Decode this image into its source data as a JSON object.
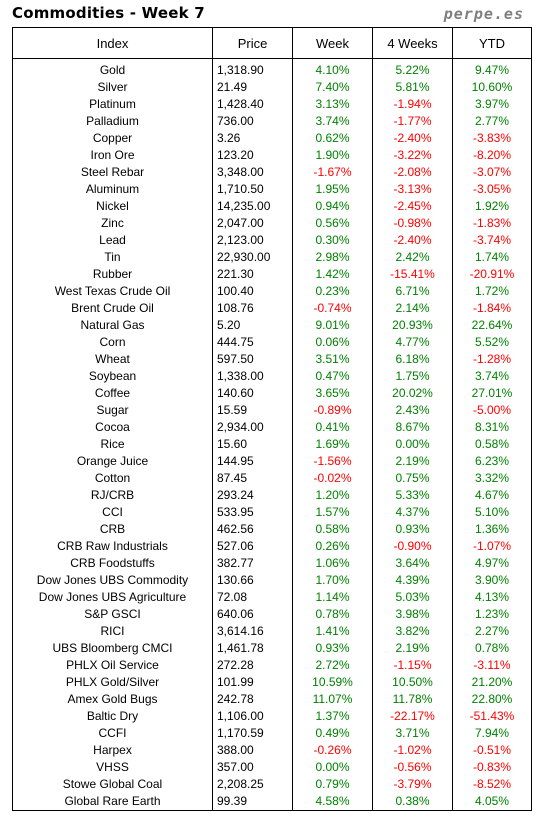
{
  "title": "Commodities - Week 7",
  "brand": "perpe.es",
  "colors": {
    "positive": "#008000",
    "negative": "#ff0000"
  },
  "columns": [
    "Index",
    "Price",
    "Week",
    "4 Weeks",
    "YTD"
  ],
  "rows": [
    {
      "index": "Gold",
      "price": "1,318.90",
      "week": "4.10%",
      "four_weeks": "5.22%",
      "ytd": "9.47%"
    },
    {
      "index": "Silver",
      "price": "21.49",
      "week": "7.40%",
      "four_weeks": "5.81%",
      "ytd": "10.60%"
    },
    {
      "index": "Platinum",
      "price": "1,428.40",
      "week": "3.13%",
      "four_weeks": "-1.94%",
      "ytd": "3.97%"
    },
    {
      "index": "Palladium",
      "price": "736.00",
      "week": "3.74%",
      "four_weeks": "-1.77%",
      "ytd": "2.77%"
    },
    {
      "index": "Copper",
      "price": "3.26",
      "week": "0.62%",
      "four_weeks": "-2.40%",
      "ytd": "-3.83%"
    },
    {
      "index": "Iron Ore",
      "price": "123.20",
      "week": "1.90%",
      "four_weeks": "-3.22%",
      "ytd": "-8.20%"
    },
    {
      "index": "Steel Rebar",
      "price": "3,348.00",
      "week": "-1.67%",
      "four_weeks": "-2.08%",
      "ytd": "-3.07%"
    },
    {
      "index": "Aluminum",
      "price": "1,710.50",
      "week": "1.95%",
      "four_weeks": "-3.13%",
      "ytd": "-3.05%"
    },
    {
      "index": "Nickel",
      "price": "14,235.00",
      "week": "0.94%",
      "four_weeks": "-2.45%",
      "ytd": "1.92%"
    },
    {
      "index": "Zinc",
      "price": "2,047.00",
      "week": "0.56%",
      "four_weeks": "-0.98%",
      "ytd": "-1.83%"
    },
    {
      "index": "Lead",
      "price": "2,123.00",
      "week": "0.30%",
      "four_weeks": "-2.40%",
      "ytd": "-3.74%"
    },
    {
      "index": "Tin",
      "price": "22,930.00",
      "week": "2.98%",
      "four_weeks": "2.42%",
      "ytd": "1.74%"
    },
    {
      "index": "Rubber",
      "price": "221.30",
      "week": "1.42%",
      "four_weeks": "-15.41%",
      "ytd": "-20.91%"
    },
    {
      "index": "West Texas Crude Oil",
      "price": "100.40",
      "week": "0.23%",
      "four_weeks": "6.71%",
      "ytd": "1.72%"
    },
    {
      "index": "Brent Crude Oil",
      "price": "108.76",
      "week": "-0.74%",
      "four_weeks": "2.14%",
      "ytd": "-1.84%"
    },
    {
      "index": "Natural Gas",
      "price": "5.20",
      "week": "9.01%",
      "four_weeks": "20.93%",
      "ytd": "22.64%"
    },
    {
      "index": "Corn",
      "price": "444.75",
      "week": "0.06%",
      "four_weeks": "4.77%",
      "ytd": "5.52%"
    },
    {
      "index": "Wheat",
      "price": "597.50",
      "week": "3.51%",
      "four_weeks": "6.18%",
      "ytd": "-1.28%"
    },
    {
      "index": "Soybean",
      "price": "1,338.00",
      "week": "0.47%",
      "four_weeks": "1.75%",
      "ytd": "3.74%"
    },
    {
      "index": "Coffee",
      "price": "140.60",
      "week": "3.65%",
      "four_weeks": "20.02%",
      "ytd": "27.01%"
    },
    {
      "index": "Sugar",
      "price": "15.59",
      "week": "-0.89%",
      "four_weeks": "2.43%",
      "ytd": "-5.00%"
    },
    {
      "index": "Cocoa",
      "price": "2,934.00",
      "week": "0.41%",
      "four_weeks": "8.67%",
      "ytd": "8.31%"
    },
    {
      "index": "Rice",
      "price": "15.60",
      "week": "1.69%",
      "four_weeks": "0.00%",
      "ytd": "0.58%"
    },
    {
      "index": "Orange Juice",
      "price": "144.95",
      "week": "-1.56%",
      "four_weeks": "2.19%",
      "ytd": "6.23%"
    },
    {
      "index": "Cotton",
      "price": "87.45",
      "week": "-0.02%",
      "four_weeks": "0.75%",
      "ytd": "3.32%"
    },
    {
      "index": "RJ/CRB",
      "price": "293.24",
      "week": "1.20%",
      "four_weeks": "5.33%",
      "ytd": "4.67%"
    },
    {
      "index": "CCI",
      "price": "533.95",
      "week": "1.57%",
      "four_weeks": "4.37%",
      "ytd": "5.10%"
    },
    {
      "index": "CRB",
      "price": "462.56",
      "week": "0.58%",
      "four_weeks": "0.93%",
      "ytd": "1.36%"
    },
    {
      "index": "CRB Raw Industrials",
      "price": "527.06",
      "week": "0.26%",
      "four_weeks": "-0.90%",
      "ytd": "-1.07%"
    },
    {
      "index": "CRB Foodstuffs",
      "price": "382.77",
      "week": "1.06%",
      "four_weeks": "3.64%",
      "ytd": "4.97%"
    },
    {
      "index": "Dow Jones UBS Commodity",
      "price": "130.66",
      "week": "1.70%",
      "four_weeks": "4.39%",
      "ytd": "3.90%"
    },
    {
      "index": "Dow Jones UBS Agriculture",
      "price": "72.08",
      "week": "1.14%",
      "four_weeks": "5.03%",
      "ytd": "4.13%"
    },
    {
      "index": "S&P GSCI",
      "price": "640.06",
      "week": "0.78%",
      "four_weeks": "3.98%",
      "ytd": "1.23%"
    },
    {
      "index": "RICI",
      "price": "3,614.16",
      "week": "1.41%",
      "four_weeks": "3.82%",
      "ytd": "2.27%"
    },
    {
      "index": "UBS Bloomberg CMCI",
      "price": "1,461.78",
      "week": "0.93%",
      "four_weeks": "2.19%",
      "ytd": "0.78%"
    },
    {
      "index": "PHLX Oil Service",
      "price": "272.28",
      "week": "2.72%",
      "four_weeks": "-1.15%",
      "ytd": "-3.11%"
    },
    {
      "index": "PHLX Gold/Silver",
      "price": "101.99",
      "week": "10.59%",
      "four_weeks": "10.50%",
      "ytd": "21.20%"
    },
    {
      "index": "Amex Gold Bugs",
      "price": "242.78",
      "week": "11.07%",
      "four_weeks": "11.78%",
      "ytd": "22.80%"
    },
    {
      "index": "Baltic Dry",
      "price": "1,106.00",
      "week": "1.37%",
      "four_weeks": "-22.17%",
      "ytd": "-51.43%"
    },
    {
      "index": "CCFI",
      "price": "1,170.59",
      "week": "0.49%",
      "four_weeks": "3.71%",
      "ytd": "7.94%"
    },
    {
      "index": "Harpex",
      "price": "388.00",
      "week": "-0.26%",
      "four_weeks": "-1.02%",
      "ytd": "-0.51%"
    },
    {
      "index": "VHSS",
      "price": "357.00",
      "week": "0.00%",
      "four_weeks": "-0.56%",
      "ytd": "-0.83%"
    },
    {
      "index": "Stowe Global Coal",
      "price": "2,208.25",
      "week": "0.79%",
      "four_weeks": "-3.79%",
      "ytd": "-8.52%"
    },
    {
      "index": "Global Rare Earth",
      "price": "99.39",
      "week": "4.58%",
      "four_weeks": "0.38%",
      "ytd": "4.05%"
    }
  ]
}
